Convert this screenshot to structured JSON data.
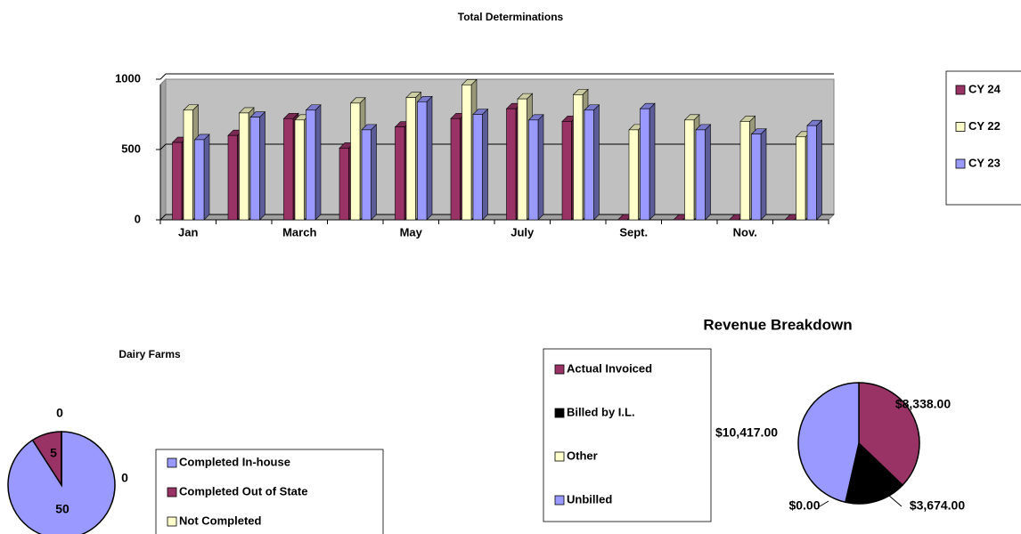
{
  "chart_data": [
    {
      "type": "bar3d",
      "title": "Total Determinations",
      "categories": [
        "Jan",
        null,
        "March",
        null,
        "May",
        null,
        "July",
        null,
        "Sept.",
        null,
        "Nov.",
        null
      ],
      "series": [
        {
          "name": "CY 24",
          "color": "#993366",
          "values": [
            550,
            600,
            720,
            510,
            660,
            720,
            790,
            700,
            0,
            0,
            0,
            0
          ]
        },
        {
          "name": "CY 22",
          "color": "#ffffcc",
          "values": [
            780,
            760,
            710,
            830,
            870,
            960,
            860,
            890,
            640,
            710,
            700,
            590
          ]
        },
        {
          "name": "CY 23",
          "color": "#9999ff",
          "values": [
            570,
            730,
            780,
            640,
            840,
            750,
            710,
            780,
            790,
            640,
            610,
            670
          ]
        }
      ],
      "ylim": [
        0,
        1000
      ],
      "yticks": [
        0,
        500,
        1000
      ],
      "grid": true,
      "legend": "right"
    },
    {
      "type": "pie",
      "title": "Dairy Farms",
      "categories": [
        "Completed In-house",
        "Completed Out of State",
        "Not Completed",
        null
      ],
      "values": [
        50,
        5,
        0,
        0
      ],
      "colors": [
        "#9999ff",
        "#993366",
        "#ffffcc",
        "#ccffff"
      ]
    },
    {
      "type": "pie",
      "title": "Revenue Breakdown",
      "categories": [
        "Actual Invoiced",
        "Billed by I.L.",
        "Other",
        "Unbilled"
      ],
      "values": [
        8338.0,
        3674.0,
        0.0,
        10417.0
      ],
      "value_labels": [
        "$8,338.00",
        "$3,674.00",
        "$0.00",
        "$10,417.00"
      ],
      "colors": [
        "#993366",
        "#000000",
        "#ffffcc",
        "#9999ff"
      ]
    }
  ]
}
